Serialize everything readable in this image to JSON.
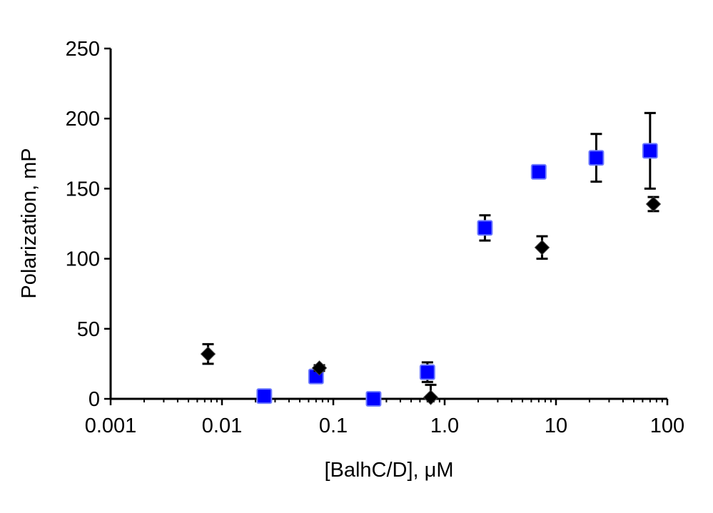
{
  "chart_data": {
    "type": "scatter",
    "xscale": "log",
    "xlim": [
      0.001,
      100
    ],
    "ylim": [
      0,
      250
    ],
    "xlabel": "[BalhC/D], μM",
    "ylabel": "Polarization, mP",
    "x_ticks": [
      "0.001",
      "0.01",
      "0.1",
      "1.0",
      "10",
      "100"
    ],
    "x_tick_values": [
      0.001,
      0.01,
      0.1,
      1,
      10,
      100
    ],
    "y_ticks": [
      "0",
      "50",
      "100",
      "150",
      "200",
      "250"
    ],
    "y_tick_values": [
      0,
      50,
      100,
      150,
      200,
      250
    ],
    "grid": false,
    "legend": false,
    "series": [
      {
        "marker": "square",
        "color": "#0000ff",
        "points": [
          {
            "x": 0.024,
            "y": 2,
            "err": 0
          },
          {
            "x": 0.07,
            "y": 16,
            "err": 0
          },
          {
            "x": 0.23,
            "y": 0,
            "err": 0
          },
          {
            "x": 0.7,
            "y": 19,
            "err": 7
          },
          {
            "x": 2.3,
            "y": 122,
            "err": 9
          },
          {
            "x": 7,
            "y": 162,
            "err": 0
          },
          {
            "x": 23,
            "y": 172,
            "err": 17
          },
          {
            "x": 70,
            "y": 177,
            "err": 27
          }
        ]
      },
      {
        "marker": "diamond",
        "color": "#000000",
        "points": [
          {
            "x": 0.0075,
            "y": 32,
            "err": 7
          },
          {
            "x": 0.075,
            "y": 22,
            "err": 2
          },
          {
            "x": 0.75,
            "y": 1,
            "err": 9
          },
          {
            "x": 7.5,
            "y": 108,
            "err": 8
          },
          {
            "x": 75,
            "y": 139,
            "err": 5
          }
        ]
      }
    ]
  }
}
